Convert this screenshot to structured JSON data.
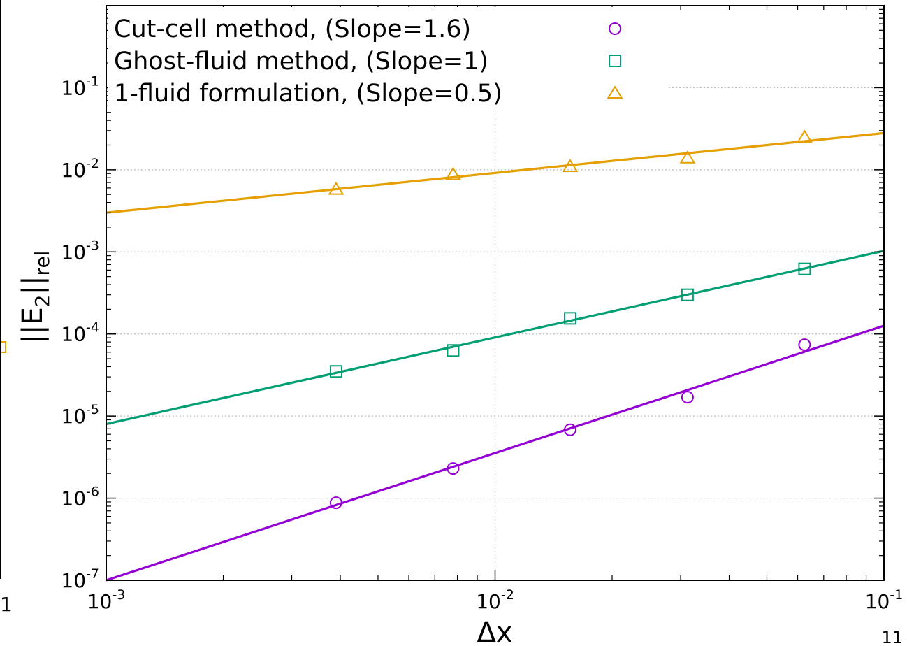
{
  "chart_data": {
    "type": "scatter",
    "xscale": "log",
    "yscale": "log",
    "xlim": [
      0.001,
      0.1
    ],
    "ylim": [
      1e-07,
      1
    ],
    "grid": true,
    "legend_position": "top-left",
    "xlabel": "Δx",
    "ylabel": {
      "base": "||E",
      "sub1": "2",
      "mid": "||",
      "sub2": "rel"
    },
    "x_ticks": [
      {
        "value": 0.001,
        "base": "10",
        "exp": "-3"
      },
      {
        "value": 0.01,
        "base": "10",
        "exp": "-2"
      },
      {
        "value": 0.1,
        "base": "10",
        "exp": "-1"
      }
    ],
    "y_ticks": [
      {
        "value": 0.1,
        "base": "10",
        "exp": "-1"
      },
      {
        "value": 0.01,
        "base": "10",
        "exp": "-2"
      },
      {
        "value": 0.001,
        "base": "10",
        "exp": "-3"
      },
      {
        "value": 0.0001,
        "base": "10",
        "exp": "-4"
      },
      {
        "value": 1e-05,
        "base": "10",
        "exp": "-5"
      },
      {
        "value": 1e-06,
        "base": "10",
        "exp": "-6"
      },
      {
        "value": 1e-07,
        "base": "10",
        "exp": "-7"
      }
    ],
    "series": [
      {
        "name": "Cut-cell method, (Slope=1.6)",
        "marker": "circle",
        "color": "#9400d3",
        "x": [
          0.0039,
          0.0078,
          0.0156,
          0.03125,
          0.0625
        ],
        "y": [
          8.8e-07,
          2.3e-06,
          6.8e-06,
          1.7e-05,
          7.4e-05
        ],
        "fit": {
          "slope": 1.6,
          "x": [
            0.001,
            0.1
          ],
          "y": [
            1e-07,
            0.000126
          ]
        }
      },
      {
        "name": "Ghost-fluid method, (Slope=1)",
        "marker": "square",
        "color": "#009e73",
        "x": [
          0.0039,
          0.0078,
          0.0156,
          0.03125,
          0.0625
        ],
        "y": [
          3.5e-05,
          6.3e-05,
          0.000155,
          0.0003,
          0.00062
        ],
        "fit": {
          "slope": 1,
          "x": [
            0.001,
            0.1
          ],
          "y": [
            8e-06,
            0.00103
          ]
        }
      },
      {
        "name": "1-fluid formulation, (Slope=0.5)",
        "marker": "triangle",
        "color": "#e69f00",
        "x": [
          0.0039,
          0.0078,
          0.0156,
          0.03125,
          0.0625
        ],
        "y": [
          0.0058,
          0.0088,
          0.011,
          0.014,
          0.025
        ],
        "fit": {
          "slope": 0.5,
          "x": [
            0.001,
            0.1
          ],
          "y": [
            0.003,
            0.028
          ]
        }
      }
    ]
  },
  "stray": {
    "left_tick": "1",
    "page_number": "11"
  }
}
